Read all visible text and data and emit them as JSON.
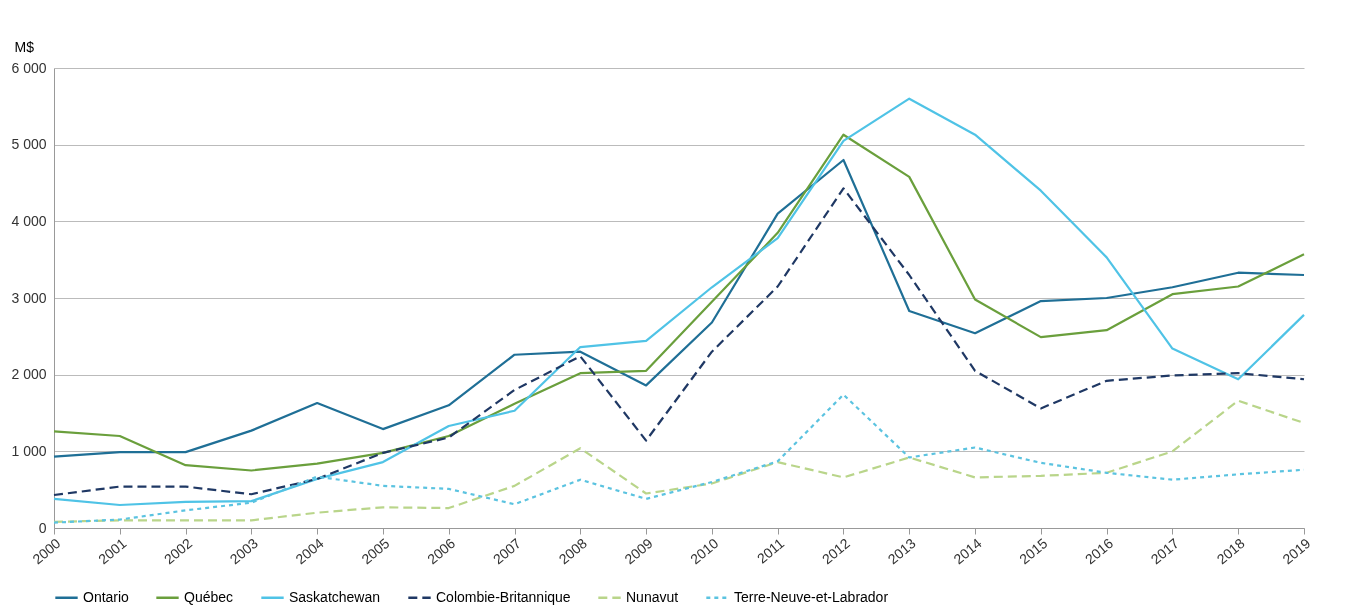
{
  "chart_data": {
    "type": "line",
    "ylabel": "M$",
    "categories": [
      "2000",
      "2001",
      "2002",
      "2003",
      "2004",
      "2005",
      "2006",
      "2007",
      "2008",
      "2009",
      "2010",
      "2011",
      "2012",
      "2013",
      "2014",
      "2015",
      "2016",
      "2017",
      "2018",
      "2019"
    ],
    "series": [
      {
        "name": "Ontario",
        "color": "#1f6f96",
        "line_style": "solid",
        "values": [
          930,
          990,
          990,
          1270,
          1630,
          1290,
          1600,
          2260,
          2300,
          1860,
          2680,
          4100,
          4800,
          2830,
          2540,
          2960,
          3000,
          3140,
          3330,
          3300
        ]
      },
      {
        "name": "Québec",
        "color": "#6a9f3c",
        "line_style": "solid",
        "values": [
          1260,
          1200,
          820,
          750,
          840,
          980,
          1200,
          1620,
          2020,
          2050,
          2950,
          3850,
          5130,
          4580,
          2980,
          2490,
          2580,
          3050,
          3150,
          3570
        ]
      },
      {
        "name": "Saskatchewan",
        "color": "#4fc3e6",
        "line_style": "solid",
        "values": [
          380,
          300,
          340,
          350,
          640,
          860,
          1330,
          1530,
          2360,
          2440,
          3140,
          3780,
          5050,
          5600,
          5130,
          4400,
          3530,
          2340,
          1940,
          2780
        ]
      },
      {
        "name": "Colombie-Britannique",
        "color": "#1f3864",
        "line_style": "dashed",
        "values": [
          430,
          540,
          540,
          440,
          640,
          980,
          1180,
          1800,
          2240,
          1140,
          2300,
          3150,
          4430,
          3300,
          2050,
          1560,
          1920,
          1990,
          2020,
          1940
        ]
      },
      {
        "name": "Nunavut",
        "color": "#b9d58a",
        "line_style": "dashed",
        "values": [
          80,
          100,
          100,
          100,
          200,
          270,
          260,
          550,
          1040,
          450,
          580,
          860,
          660,
          920,
          660,
          680,
          720,
          1000,
          1660,
          1370
        ]
      },
      {
        "name": "Terre-Neuve-et-Labrador",
        "color": "#5bc3e0",
        "line_style": "dotted",
        "values": [
          70,
          110,
          230,
          330,
          670,
          550,
          510,
          310,
          630,
          380,
          600,
          870,
          1740,
          920,
          1050,
          850,
          720,
          630,
          700,
          760
        ]
      }
    ],
    "ylim": [
      0,
      6000
    ],
    "yticks": [
      {
        "value": 0,
        "label": "0"
      },
      {
        "value": 1000,
        "label": "1 000"
      },
      {
        "value": 2000,
        "label": "2 000"
      },
      {
        "value": 3000,
        "label": "3 000"
      },
      {
        "value": 4000,
        "label": "4 000"
      },
      {
        "value": 5000,
        "label": "5 000"
      },
      {
        "value": 6000,
        "label": "6 000"
      }
    ],
    "grid": "y",
    "legend": "bottom"
  }
}
